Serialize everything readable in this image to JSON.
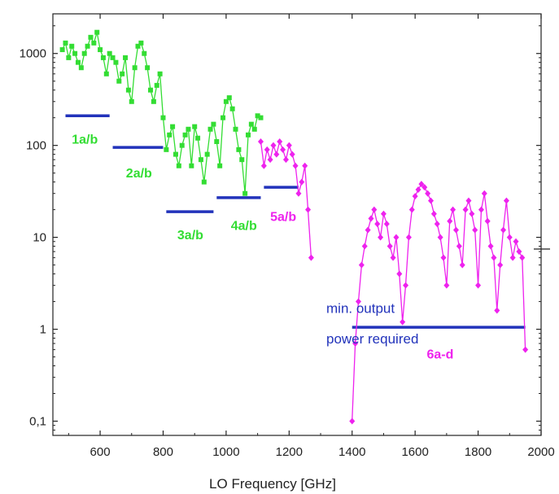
{
  "chart_data": {
    "type": "scatter",
    "title": "",
    "xlabel": "LO Frequency [GHz]",
    "ylabel": "",
    "xlim": [
      450,
      2000
    ],
    "ylim": [
      0.07,
      2700
    ],
    "yscale": "log",
    "grid": false,
    "x_ticks": [
      600,
      800,
      1000,
      1200,
      1400,
      1600,
      1800,
      2000
    ],
    "x_tick_labels": [
      "600",
      "800",
      "1000",
      "1200",
      "1400",
      "1600",
      "1800",
      "2000"
    ],
    "y_ticks": [
      0.1,
      1,
      10,
      100,
      1000
    ],
    "y_tick_labels": [
      "0,1",
      "1",
      "10",
      "100",
      "1000"
    ],
    "colors": {
      "green": "#33dd33",
      "magenta": "#ee22ee",
      "blue": "#2233bb"
    },
    "series": [
      {
        "color": "green",
        "marker": "square",
        "x": [
          480,
          490,
          500,
          510,
          520,
          530,
          540,
          550,
          560,
          570,
          580,
          590,
          600,
          610,
          620,
          630,
          640,
          650,
          660,
          670,
          680,
          690,
          700,
          710,
          720,
          730,
          740,
          750,
          760,
          770,
          780,
          790,
          800,
          810,
          820,
          830,
          840,
          850,
          860,
          870,
          880,
          890,
          900,
          910,
          920,
          930,
          940,
          950,
          960,
          970,
          980,
          990,
          1000,
          1010,
          1020,
          1030,
          1040,
          1050,
          1060,
          1070,
          1080,
          1090,
          1100,
          1110
        ],
        "y": [
          1100,
          1300,
          900,
          1200,
          1000,
          800,
          700,
          1000,
          1200,
          1500,
          1300,
          1700,
          1100,
          900,
          600,
          1000,
          900,
          800,
          500,
          600,
          900,
          400,
          300,
          700,
          1200,
          1300,
          1000,
          700,
          400,
          300,
          450,
          600,
          200,
          90,
          130,
          160,
          80,
          60,
          100,
          130,
          150,
          60,
          160,
          120,
          70,
          40,
          80,
          150,
          170,
          110,
          60,
          200,
          300,
          330,
          250,
          150,
          90,
          70,
          30,
          130,
          170,
          150,
          210,
          200
        ]
      },
      {
        "color": "magenta",
        "marker": "diamond",
        "x": [
          1110,
          1120,
          1130,
          1140,
          1150,
          1160,
          1170,
          1180,
          1190,
          1200,
          1210,
          1220,
          1230,
          1240,
          1250,
          1260,
          1270,
          1400,
          1410,
          1420,
          1430,
          1440,
          1450,
          1460,
          1470,
          1480,
          1490,
          1500,
          1510,
          1520,
          1530,
          1540,
          1550,
          1560,
          1570,
          1580,
          1590,
          1600,
          1610,
          1620,
          1630,
          1640,
          1650,
          1660,
          1670,
          1680,
          1690,
          1700,
          1710,
          1720,
          1730,
          1740,
          1750,
          1760,
          1770,
          1780,
          1790,
          1800,
          1810,
          1820,
          1830,
          1840,
          1850,
          1860,
          1870,
          1880,
          1890,
          1900,
          1910,
          1920,
          1930,
          1940,
          1950
        ],
        "y": [
          110,
          60,
          90,
          70,
          100,
          80,
          110,
          90,
          70,
          100,
          80,
          60,
          30,
          40,
          60,
          20,
          6,
          0.1,
          0.7,
          2,
          5,
          8,
          12,
          16,
          20,
          14,
          10,
          18,
          14,
          8,
          6,
          10,
          4,
          1.2,
          3,
          10,
          20,
          28,
          33,
          38,
          35,
          30,
          25,
          18,
          14,
          10,
          6,
          3,
          15,
          20,
          12,
          8,
          5,
          20,
          25,
          18,
          12,
          3,
          20,
          30,
          15,
          8,
          6,
          1.6,
          5,
          12,
          25,
          10,
          6,
          9,
          7,
          6,
          0.6
        ]
      }
    ],
    "requirement_lines": [
      {
        "x_start": 490,
        "x_end": 630,
        "y": 210
      },
      {
        "x_start": 640,
        "x_end": 800,
        "y": 95
      },
      {
        "x_start": 810,
        "x_end": 960,
        "y": 19
      },
      {
        "x_start": 970,
        "x_end": 1110,
        "y": 27
      },
      {
        "x_start": 1120,
        "x_end": 1230,
        "y": 35
      },
      {
        "x_start": 1400,
        "x_end": 1950,
        "y": 1.05
      }
    ],
    "band_labels": [
      {
        "text": "1a/b",
        "x": 510,
        "y": 105,
        "color": "green"
      },
      {
        "text": "2a/b",
        "x": 682,
        "y": 45,
        "color": "green"
      },
      {
        "text": "3a/b",
        "x": 845,
        "y": 9.5,
        "color": "green"
      },
      {
        "text": "4a/b",
        "x": 1015,
        "y": 12,
        "color": "green"
      },
      {
        "text": "5a/b",
        "x": 1140,
        "y": 15,
        "color": "magenta"
      },
      {
        "text": "6a-d",
        "x": 1637,
        "y": 0.48,
        "color": "magenta"
      }
    ],
    "annotations": [
      {
        "text": "min. output",
        "x": 1318,
        "y": 1.5,
        "color": "blue"
      },
      {
        "text": "power required",
        "x": 1318,
        "y": 0.7,
        "color": "blue"
      }
    ]
  }
}
